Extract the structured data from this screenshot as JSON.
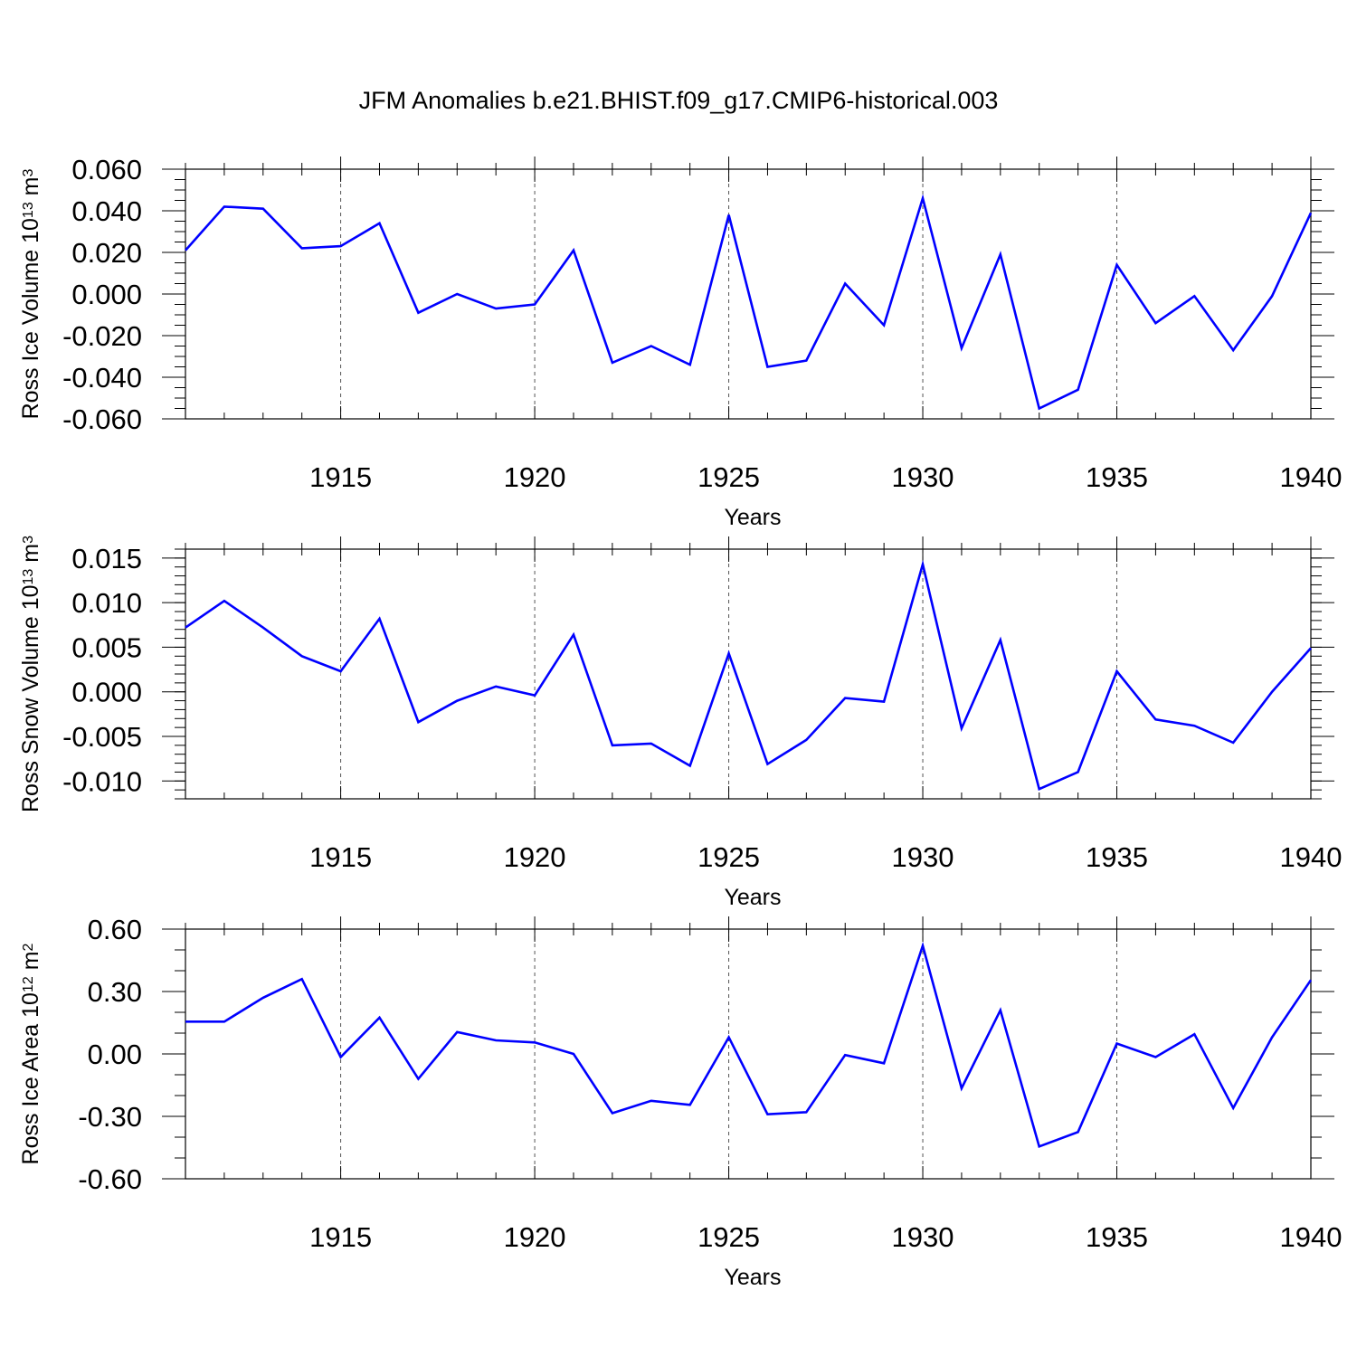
{
  "title": "JFM Anomalies b.e21.BHIST.f09_g17.CMIP6-historical.003",
  "colors": {
    "line": "#0000ff",
    "axis": "#000000",
    "grid": "#000000"
  },
  "chart_data": [
    {
      "type": "line",
      "title": "",
      "xlabel": "Years",
      "ylabel": {
        "prefix": "Ross Ice Volume 10",
        "exp": "13",
        "unit": " m",
        "unit_exp": "3"
      },
      "xlim": [
        1911,
        1940
      ],
      "ylim": [
        -0.06,
        0.06
      ],
      "yticks": [
        -0.06,
        -0.04,
        -0.02,
        0.0,
        0.02,
        0.04,
        0.06
      ],
      "ytick_labels": [
        "-0.060",
        "-0.040",
        "-0.020",
        "0.000",
        "0.020",
        "0.040",
        "0.060"
      ],
      "yminor_step": 0.005,
      "xticks": [
        1915,
        1920,
        1925,
        1930,
        1935,
        1940
      ],
      "xtick_labels": [
        "1915",
        "1920",
        "1925",
        "1930",
        "1935",
        "1940"
      ],
      "grid": "dashed vertical at major x ticks",
      "x": [
        1911,
        1912,
        1913,
        1914,
        1915,
        1916,
        1917,
        1918,
        1919,
        1920,
        1921,
        1922,
        1923,
        1924,
        1925,
        1926,
        1927,
        1928,
        1929,
        1930,
        1931,
        1932,
        1933,
        1934,
        1935,
        1936,
        1937,
        1938,
        1939,
        1940
      ],
      "series": [
        {
          "values": [
            0.021,
            0.042,
            0.041,
            0.022,
            0.023,
            0.034,
            -0.009,
            0.0,
            -0.007,
            -0.005,
            0.021,
            -0.033,
            -0.025,
            -0.034,
            0.038,
            -0.035,
            -0.032,
            0.005,
            -0.015,
            0.046,
            -0.026,
            0.019,
            -0.055,
            -0.046,
            0.014,
            -0.014,
            -0.001,
            -0.027,
            -0.001,
            0.039
          ]
        }
      ]
    },
    {
      "type": "line",
      "title": "",
      "xlabel": "Years",
      "ylabel": {
        "prefix": "Ross Snow Volume 10",
        "exp": "13",
        "unit": " m",
        "unit_exp": "3"
      },
      "xlim": [
        1911,
        1940
      ],
      "ylim": [
        -0.012,
        0.016
      ],
      "yticks": [
        -0.01,
        -0.005,
        0.0,
        0.005,
        0.01,
        0.015
      ],
      "ytick_labels": [
        "-0.010",
        "-0.005",
        "0.000",
        "0.005",
        "0.010",
        "0.015"
      ],
      "yminor_step": 0.001,
      "xticks": [
        1915,
        1920,
        1925,
        1930,
        1935,
        1940
      ],
      "xtick_labels": [
        "1915",
        "1920",
        "1925",
        "1930",
        "1935",
        "1940"
      ],
      "grid": "dashed vertical at major x ticks",
      "x": [
        1911,
        1912,
        1913,
        1914,
        1915,
        1916,
        1917,
        1918,
        1919,
        1920,
        1921,
        1922,
        1923,
        1924,
        1925,
        1926,
        1927,
        1928,
        1929,
        1930,
        1931,
        1932,
        1933,
        1934,
        1935,
        1936,
        1937,
        1938,
        1939,
        1940
      ],
      "series": [
        {
          "values": [
            0.0072,
            0.0102,
            0.0072,
            0.004,
            0.0023,
            0.0082,
            -0.0034,
            -0.001,
            0.0006,
            -0.0004,
            0.0064,
            -0.006,
            -0.0058,
            -0.0083,
            0.0043,
            -0.0081,
            -0.0054,
            -0.0007,
            -0.0011,
            0.0143,
            -0.0041,
            0.0058,
            -0.0109,
            -0.009,
            0.0023,
            -0.0031,
            -0.0038,
            -0.0057,
            0.0,
            0.0049
          ]
        }
      ]
    },
    {
      "type": "line",
      "title": "",
      "xlabel": "Years",
      "ylabel": {
        "prefix": "Ross Ice Area 10",
        "exp": "12",
        "unit": " m",
        "unit_exp": "2"
      },
      "xlim": [
        1911,
        1940
      ],
      "ylim": [
        -0.6,
        0.6
      ],
      "yticks": [
        -0.6,
        -0.3,
        0.0,
        0.3,
        0.6
      ],
      "ytick_labels": [
        "-0.60",
        "-0.30",
        "0.00",
        "0.30",
        "0.60"
      ],
      "yminor_step": 0.1,
      "xticks": [
        1915,
        1920,
        1925,
        1930,
        1935,
        1940
      ],
      "xtick_labels": [
        "1915",
        "1920",
        "1925",
        "1930",
        "1935",
        "1940"
      ],
      "grid": "dashed vertical at major x ticks",
      "x": [
        1911,
        1912,
        1913,
        1914,
        1915,
        1916,
        1917,
        1918,
        1919,
        1920,
        1921,
        1922,
        1923,
        1924,
        1925,
        1926,
        1927,
        1928,
        1929,
        1930,
        1931,
        1932,
        1933,
        1934,
        1935,
        1936,
        1937,
        1938,
        1939,
        1940
      ],
      "series": [
        {
          "values": [
            0.155,
            0.155,
            0.27,
            0.36,
            -0.015,
            0.175,
            -0.12,
            0.105,
            0.065,
            0.055,
            0.0,
            -0.285,
            -0.225,
            -0.245,
            0.08,
            -0.29,
            -0.28,
            -0.005,
            -0.045,
            0.52,
            -0.165,
            0.21,
            -0.445,
            -0.375,
            0.05,
            -0.015,
            0.095,
            -0.26,
            0.08,
            0.355
          ]
        }
      ]
    }
  ]
}
